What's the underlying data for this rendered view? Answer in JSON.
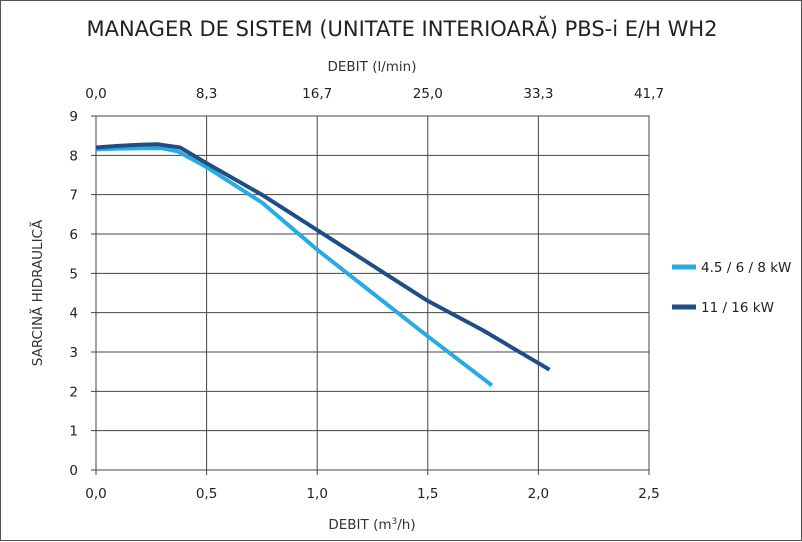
{
  "chart_data": {
    "type": "line",
    "title": "MANAGER DE SISTEM (UNITATE INTERIOARĂ) PBS-i E/H WH2",
    "xlabel_bottom_main": "DEBIT (m",
    "xlabel_bottom_sup": "3",
    "xlabel_bottom_end": "/h)",
    "xlabel_top": "DEBIT (l/min)",
    "ylabel": "SARCINĂ HIDRAULICĂ",
    "xlim": [
      0,
      2.5
    ],
    "ylim": [
      0,
      9
    ],
    "x_ticks": [
      "0,0",
      "0,5",
      "1,0",
      "1,5",
      "2,0",
      "2,5"
    ],
    "x_top_ticks": [
      "0,0",
      "8,3",
      "16,7",
      "25,0",
      "33,3",
      "41,7"
    ],
    "y_ticks": [
      "0",
      "1",
      "2",
      "3",
      "4",
      "5",
      "6",
      "7",
      "8",
      "9"
    ],
    "grid": true,
    "legend_position": "right",
    "series": [
      {
        "name": "4.5 / 6 / 8 kW",
        "color": "#29abe2",
        "points": [
          [
            0.0,
            8.15
          ],
          [
            0.1,
            8.17
          ],
          [
            0.2,
            8.18
          ],
          [
            0.3,
            8.18
          ],
          [
            0.37,
            8.1
          ],
          [
            0.5,
            7.7
          ],
          [
            0.75,
            6.8
          ],
          [
            1.0,
            5.6
          ],
          [
            1.25,
            4.5
          ],
          [
            1.5,
            3.4
          ],
          [
            1.79,
            2.15
          ]
        ]
      },
      {
        "name": "11 / 16 kW",
        "color": "#1f4e86",
        "points": [
          [
            0.0,
            8.2
          ],
          [
            0.1,
            8.24
          ],
          [
            0.2,
            8.27
          ],
          [
            0.28,
            8.28
          ],
          [
            0.38,
            8.2
          ],
          [
            0.5,
            7.8
          ],
          [
            0.75,
            7.0
          ],
          [
            1.0,
            6.1
          ],
          [
            1.25,
            5.2
          ],
          [
            1.5,
            4.3
          ],
          [
            1.75,
            3.55
          ],
          [
            2.05,
            2.55
          ]
        ]
      }
    ]
  }
}
